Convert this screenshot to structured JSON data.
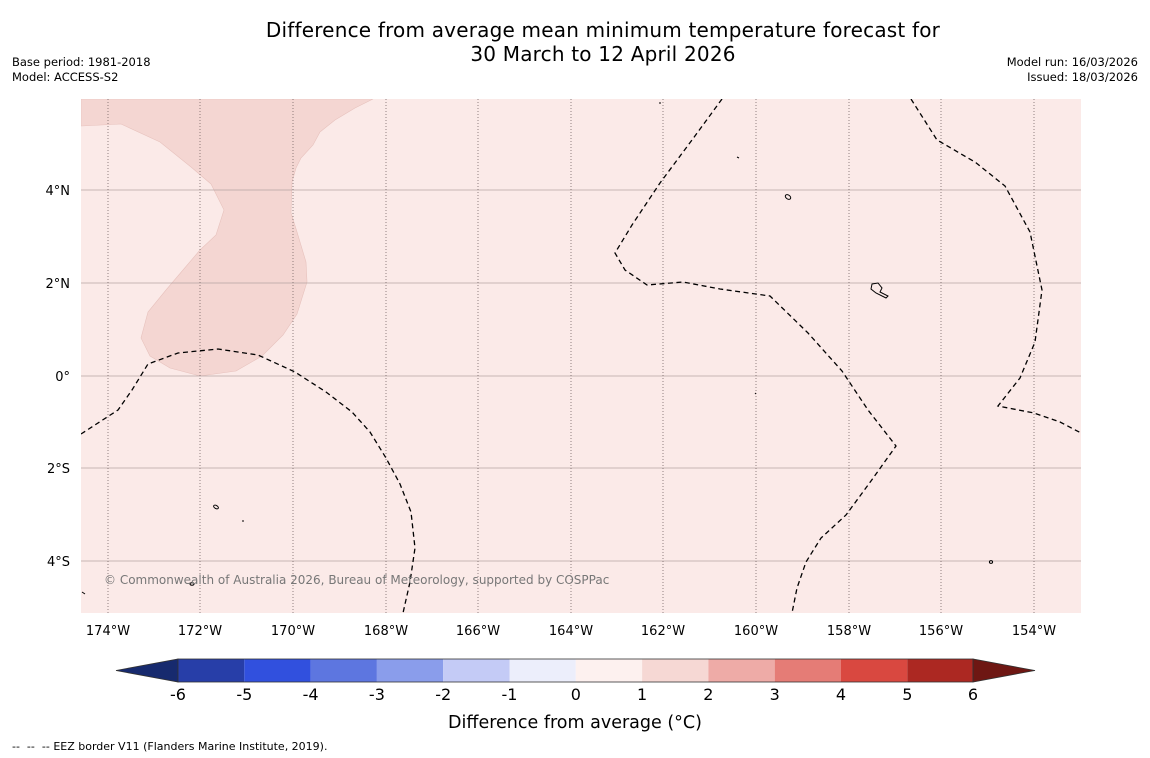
{
  "title": {
    "line1": "Difference from average mean minimum temperature forecast for",
    "line2": "30 March to 12 April 2026"
  },
  "meta_left": {
    "base_period": "Base period: 1981-2018",
    "model": "Model: ACCESS-S2"
  },
  "meta_right": {
    "model_run": "Model run: 16/03/2026",
    "issued": "Issued: 18/03/2026"
  },
  "map": {
    "lat_labels": [
      "4°N",
      "2°N",
      "0°",
      "2°S",
      "4°S"
    ],
    "lon_labels": [
      "174°W",
      "172°W",
      "170°W",
      "168°W",
      "166°W",
      "164°W",
      "162°W",
      "160°W",
      "158°W",
      "156°W",
      "154°W"
    ],
    "copyright": "© Commonwealth of Australia 2026, Bureau of Meteorology, supported by COSPPac",
    "colors": {
      "anomaly_0_1": "#fbeae8",
      "anomaly_1_2": "#f4d6d2",
      "grid": "#b6a3a3"
    }
  },
  "colorbar": {
    "ticks": [
      "-6",
      "-5",
      "-4",
      "-3",
      "-2",
      "-1",
      "0",
      "1",
      "2",
      "3",
      "4",
      "5",
      "6"
    ],
    "label": "Difference from average (°C)",
    "colors": [
      "#172a6e",
      "#273ea8",
      "#3150de",
      "#5d76e0",
      "#8a9deb",
      "#c4cbf6",
      "#eceefb",
      "#fdf1ef",
      "#f6d8d4",
      "#eeaba7",
      "#e57c76",
      "#d94840",
      "#ac2822",
      "#6e1713"
    ]
  },
  "footer": {
    "legend_marker": "--  --  --",
    "legend_text": "EEZ border V11 (Flanders Marine Institute, 2019)."
  }
}
